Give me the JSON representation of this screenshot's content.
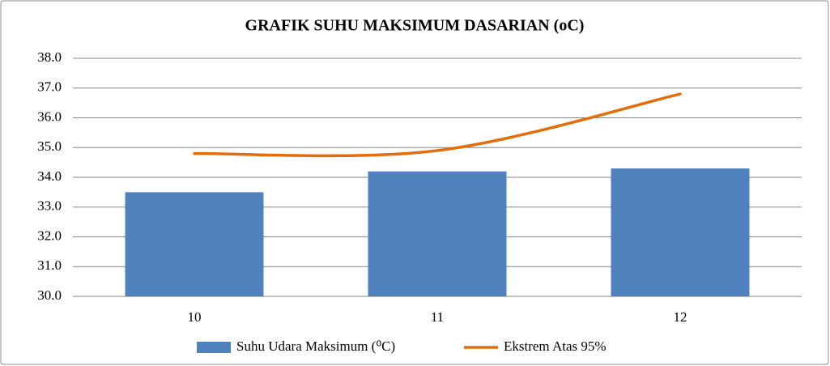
{
  "chart_data": {
    "type": "combo",
    "title": "GRAFIK SUHU MAKSIMUM DASARIAN (oC)",
    "categories": [
      "10",
      "11",
      "12"
    ],
    "series": [
      {
        "name": "Suhu Udara Maksimum (⁰C)",
        "type": "bar",
        "color": "#4f81bd",
        "values": [
          33.5,
          34.2,
          34.3
        ]
      },
      {
        "name": "Ekstrem Atas  95%",
        "type": "line",
        "color": "#e46c0a",
        "values": [
          34.8,
          34.9,
          36.8
        ]
      }
    ],
    "ylim": [
      30,
      38
    ],
    "yticks": [
      {
        "value": 30,
        "label": "30.0"
      },
      {
        "value": 31,
        "label": "31.0"
      },
      {
        "value": 32,
        "label": "32.0"
      },
      {
        "value": 33,
        "label": "33.0"
      },
      {
        "value": 34,
        "label": "34.0"
      },
      {
        "value": 35,
        "label": "35.0"
      },
      {
        "value": 36,
        "label": "36.0"
      },
      {
        "value": 37,
        "label": "37.0"
      },
      {
        "value": 38,
        "label": "38.0"
      }
    ],
    "grid": true,
    "legend": "bottom"
  }
}
